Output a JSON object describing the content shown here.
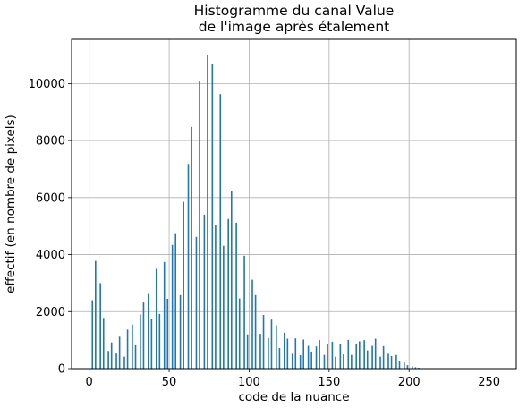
{
  "chart_data": {
    "type": "bar",
    "title": "Histogramme du canal Value",
    "subtitle": "de l'image après étalement",
    "xlabel": "code de la nuance",
    "ylabel": "effectif (en nombre de pixels)",
    "xlim": [
      -11,
      267
    ],
    "ylim": [
      0,
      11550
    ],
    "xticks": [
      0,
      50,
      100,
      150,
      200,
      250
    ],
    "yticks": [
      0,
      2000,
      4000,
      6000,
      8000,
      10000
    ],
    "xtick_labels": [
      "0",
      "50",
      "100",
      "150",
      "200",
      "250"
    ],
    "ytick_labels": [
      "0",
      "2000",
      "4000",
      "6000",
      "8000",
      "10000"
    ],
    "grid": true,
    "bar_color": "#1f77b4",
    "x": [
      2,
      4,
      7,
      9,
      12,
      14,
      17,
      19,
      22,
      24,
      27,
      29,
      32,
      34,
      37,
      39,
      42,
      44,
      47,
      49,
      52,
      54,
      57,
      59,
      62,
      64,
      67,
      69,
      72,
      74,
      77,
      79,
      82,
      84,
      87,
      89,
      92,
      94,
      97,
      99,
      102,
      104,
      107,
      109,
      112,
      114,
      117,
      119,
      122,
      124,
      127,
      129,
      132,
      134,
      137,
      139,
      142,
      144,
      147,
      149,
      152,
      154,
      157,
      159,
      162,
      164,
      167,
      169,
      172,
      174,
      177,
      179,
      182,
      184,
      187,
      189,
      192,
      194,
      197,
      199,
      202,
      204,
      206
    ],
    "values": [
      2400,
      3780,
      3000,
      1780,
      620,
      920,
      530,
      1120,
      420,
      1370,
      1550,
      820,
      1900,
      2320,
      2620,
      1750,
      3500,
      1920,
      3740,
      2450,
      4340,
      4750,
      2580,
      5850,
      7180,
      8480,
      4620,
      10100,
      5400,
      11000,
      10700,
      5050,
      9630,
      4310,
      5250,
      6220,
      5120,
      2460,
      3960,
      1200,
      3120,
      2580,
      1220,
      1880,
      1070,
      1720,
      1520,
      720,
      1260,
      1050,
      520,
      1060,
      470,
      1020,
      800,
      600,
      780,
      1000,
      480,
      870,
      940,
      420,
      880,
      500,
      1010,
      480,
      880,
      960,
      1000,
      640,
      800,
      1050,
      420,
      790,
      520,
      440,
      480,
      280,
      210,
      120,
      80,
      50,
      30
    ]
  }
}
